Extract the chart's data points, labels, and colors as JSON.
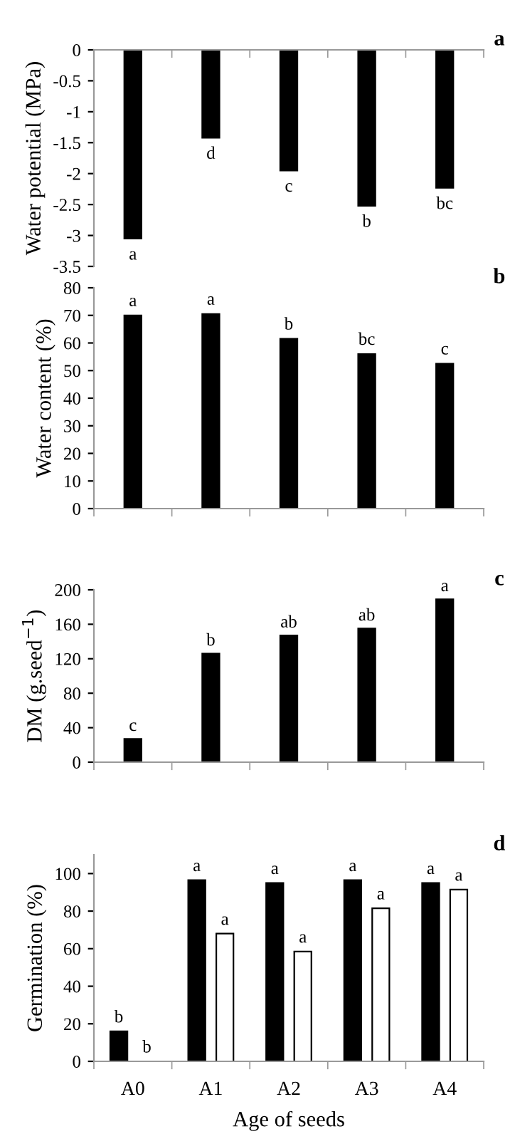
{
  "chart_data": [
    {
      "type": "bar",
      "ylabel": "Water potential (MPa)",
      "annotations": [
        "a"
      ],
      "categories": [
        null,
        null,
        null,
        null,
        null
      ],
      "series": [
        {
          "color": "#000000",
          "values": [
            -3.05,
            -1.42,
            -1.95,
            -2.52,
            -2.23
          ],
          "value_labels": [
            "a",
            "d",
            "c",
            "b",
            "bc"
          ]
        }
      ],
      "ylim": [
        -3.5,
        0
      ],
      "yticks": [
        -3.5,
        -3,
        -2.5,
        -2,
        -1.5,
        -1,
        -0.5,
        0
      ],
      "grid": false,
      "legend": false
    },
    {
      "type": "bar",
      "ylabel": "Water content (%)",
      "annotations": [
        "b"
      ],
      "categories": [
        null,
        null,
        null,
        null,
        null
      ],
      "series": [
        {
          "color": "#000000",
          "values": [
            70,
            70.5,
            61.5,
            56,
            52.5
          ],
          "value_labels": [
            "a",
            "a",
            "b",
            "bc",
            "c"
          ]
        }
      ],
      "ylim": [
        0,
        80
      ],
      "yticks": [
        0,
        10,
        20,
        30,
        40,
        50,
        60,
        70,
        80
      ],
      "grid": false,
      "legend": false
    },
    {
      "type": "bar",
      "ylabel": "DM (g.seed$^{−1}$)",
      "annotations": [
        "c"
      ],
      "categories": [
        null,
        null,
        null,
        null,
        null
      ],
      "series": [
        {
          "color": "#000000",
          "values": [
            27,
            126,
            147,
            155,
            189
          ],
          "value_labels": [
            "c",
            "b",
            "ab",
            "ab",
            "a"
          ]
        }
      ],
      "ylim": [
        0,
        200
      ],
      "yticks": [
        0,
        40,
        80,
        120,
        160,
        200
      ],
      "grid": false,
      "legend": false
    },
    {
      "type": "bar",
      "ylabel": "Germination (%)",
      "xlabel": "Age of seeds",
      "annotations": [
        "d"
      ],
      "categories": [
        "A0",
        "A1",
        "A2",
        "A3",
        "A4"
      ],
      "series": [
        {
          "color": "#000000",
          "values": [
            16,
            96.5,
            95,
            96.5,
            95
          ],
          "value_labels": [
            "b",
            "a",
            "a",
            "a",
            "a"
          ]
        },
        {
          "color": "#ffffff",
          "values": [
            0,
            68,
            58.5,
            81.5,
            91.5
          ],
          "value_labels": [
            "b",
            "a",
            "a",
            "a",
            "a"
          ]
        }
      ],
      "ylim": [
        0,
        110
      ],
      "yticks": [
        0,
        20,
        40,
        60,
        80,
        100
      ],
      "grid": false,
      "legend": false
    }
  ]
}
